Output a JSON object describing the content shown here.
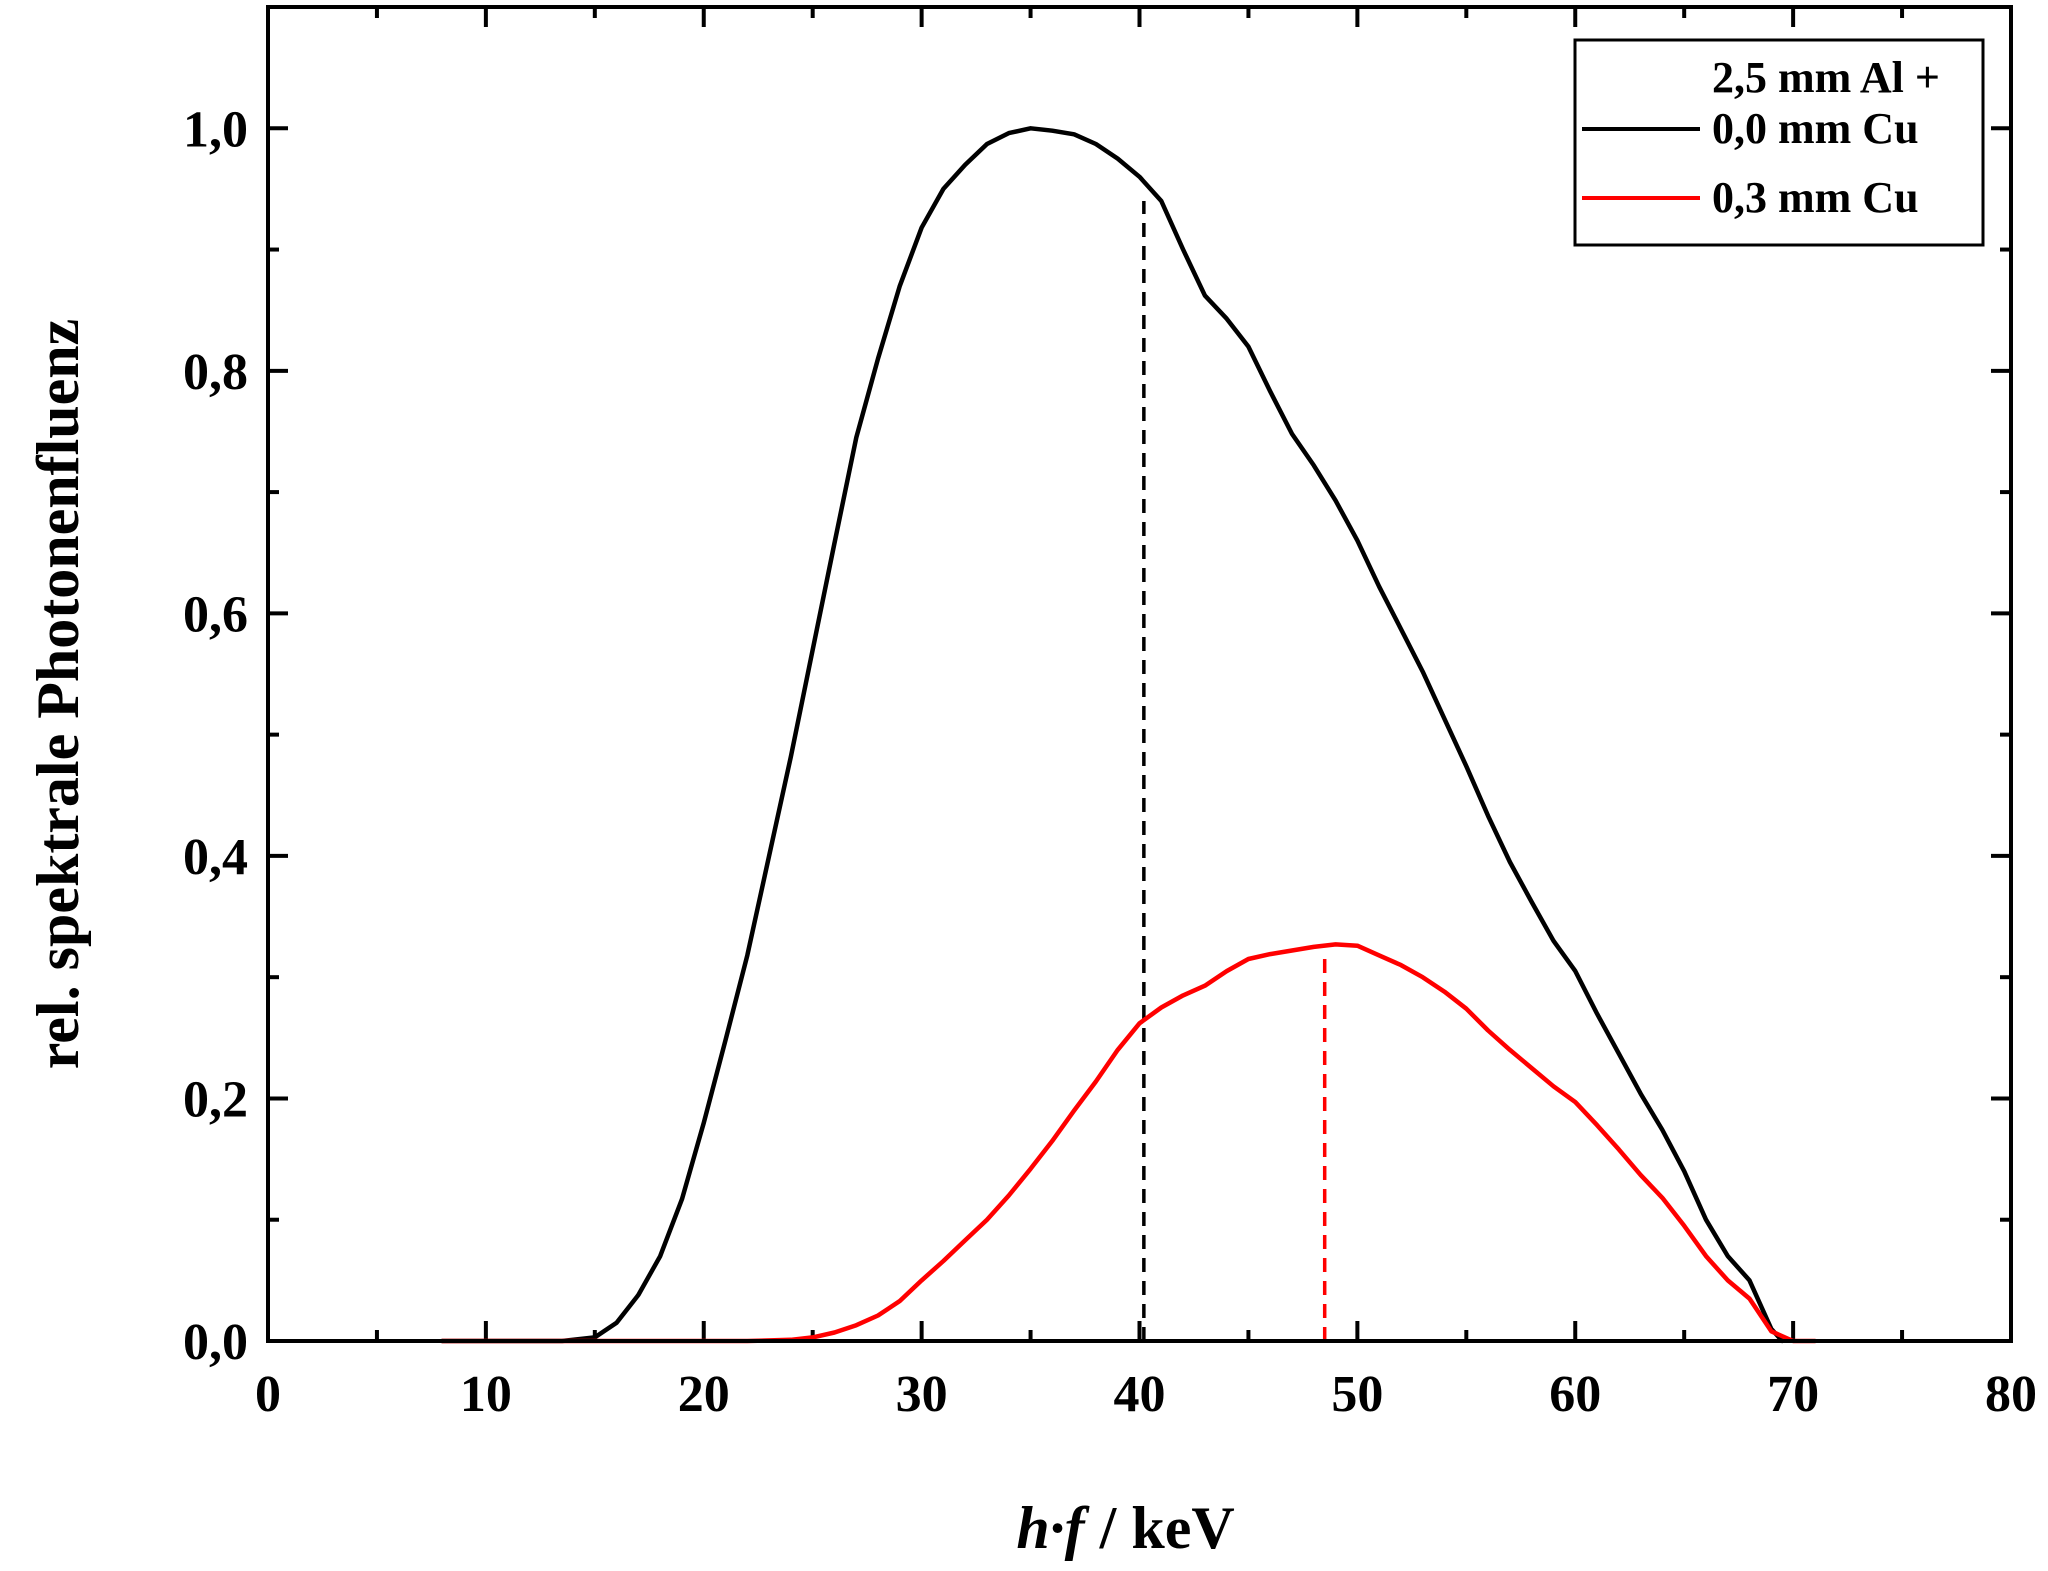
{
  "chart_data": {
    "type": "line",
    "title": "",
    "xlabel_italic": "h·f",
    "xlabel_unit": "/ keV",
    "ylabel": "rel. spektrale Photonenfluenz",
    "xlim": [
      0,
      80
    ],
    "ylim": [
      0,
      1.1
    ],
    "x_ticks": [
      0,
      10,
      20,
      30,
      40,
      50,
      60,
      70,
      80
    ],
    "x_tick_labels": [
      "0",
      "10",
      "20",
      "30",
      "40",
      "50",
      "60",
      "70",
      "80"
    ],
    "y_ticks": [
      0.0,
      0.2,
      0.4,
      0.6,
      0.8,
      1.0
    ],
    "y_tick_labels": [
      "0,0",
      "0,2",
      "0,4",
      "0,6",
      "0,8",
      "1,0"
    ],
    "grid": false,
    "legend": {
      "placement": "top-right",
      "header": "2,5 mm Al +",
      "entries": [
        "0,0 mm Cu",
        "0,3 mm Cu"
      ]
    },
    "series": [
      {
        "name": "0,0 mm Cu",
        "color": "#000000",
        "x": [
          8,
          10,
          12,
          13.5,
          15,
          16,
          17,
          18,
          19,
          20,
          21,
          22,
          23,
          24,
          25,
          26,
          27,
          28,
          29,
          30,
          31,
          32,
          33,
          34,
          35,
          36,
          37,
          38,
          39,
          40,
          41,
          42,
          43,
          44,
          45,
          46,
          47,
          48,
          49,
          50,
          51,
          52,
          53,
          54,
          55,
          56,
          57,
          58,
          59,
          60,
          61,
          62,
          63,
          64,
          65,
          66,
          67,
          68,
          69,
          69.5
        ],
        "y": [
          0,
          0,
          0,
          0,
          0.003,
          0.015,
          0.038,
          0.07,
          0.117,
          0.18,
          0.248,
          0.318,
          0.4,
          0.482,
          0.57,
          0.658,
          0.745,
          0.81,
          0.87,
          0.918,
          0.95,
          0.97,
          0.987,
          0.996,
          1.0,
          0.998,
          0.995,
          0.987,
          0.975,
          0.96,
          0.94,
          0.9,
          0.862,
          0.843,
          0.82,
          0.783,
          0.748,
          0.722,
          0.693,
          0.66,
          0.622,
          0.587,
          0.552,
          0.513,
          0.474,
          0.433,
          0.395,
          0.362,
          0.33,
          0.305,
          0.27,
          0.237,
          0.204,
          0.174,
          0.14,
          0.1,
          0.07,
          0.05,
          0.01,
          0.0
        ]
      },
      {
        "name": "0,3 mm Cu",
        "color": "#ff0000",
        "x": [
          8,
          12,
          16,
          20,
          22,
          24,
          25,
          26,
          27,
          28,
          29,
          30,
          31,
          32,
          33,
          34,
          35,
          36,
          37,
          38,
          39,
          40,
          41,
          42,
          43,
          44,
          45,
          46,
          47,
          48,
          49,
          50,
          51,
          52,
          53,
          54,
          55,
          56,
          57,
          58,
          59,
          60,
          61,
          62,
          63,
          64,
          65,
          66,
          67,
          68,
          69,
          70,
          71
        ],
        "y": [
          0,
          0,
          0,
          0,
          0,
          0.001,
          0.003,
          0.007,
          0.013,
          0.021,
          0.033,
          0.05,
          0.066,
          0.083,
          0.1,
          0.12,
          0.142,
          0.165,
          0.19,
          0.214,
          0.24,
          0.262,
          0.275,
          0.285,
          0.293,
          0.305,
          0.315,
          0.319,
          0.322,
          0.325,
          0.327,
          0.326,
          0.318,
          0.31,
          0.3,
          0.288,
          0.274,
          0.256,
          0.24,
          0.225,
          0.21,
          0.197,
          0.178,
          0.158,
          0.137,
          0.118,
          0.095,
          0.07,
          0.05,
          0.035,
          0.008,
          0.0,
          0.0
        ]
      }
    ],
    "reference_lines": [
      {
        "name": "mean-energy-0,0-mm-Cu",
        "x": 40.2,
        "y_top": 0.94,
        "color": "#000000",
        "style": "dashed"
      },
      {
        "name": "mean-energy-0,3-mm-Cu",
        "x": 48.5,
        "y_top": 0.32,
        "color": "#ff0000",
        "style": "dashed"
      }
    ]
  }
}
